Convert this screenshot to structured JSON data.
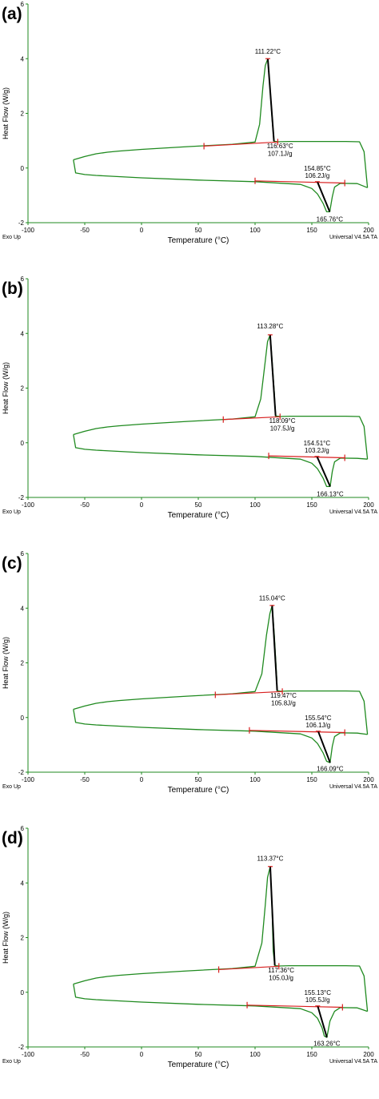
{
  "figure": {
    "colors": {
      "curve": "#1f8a1f",
      "axis": "#1f8a1f",
      "baseline": "#d81e1e",
      "tangent": "#000000",
      "text": "#000000"
    }
  },
  "chart_data": [
    {
      "type": "line",
      "panel_label": "(a)",
      "xlabel": "Temperature (°C)",
      "ylabel": "Heat Flow (W/g)",
      "xlim": [
        -100,
        200
      ],
      "ylim": [
        -2,
        6
      ],
      "xticks": [
        "-100",
        "-50",
        "0",
        "50",
        "100",
        "150",
        "200"
      ],
      "yticks": [
        "-2",
        "0",
        "2",
        "4",
        "6"
      ],
      "footer_left": "Exo Up",
      "footer_right": "Universal V4.5A TA",
      "cooling_curve": {
        "x": [
          -60,
          -50,
          -40,
          -30,
          -20,
          0,
          40,
          80,
          100,
          104,
          107,
          109,
          111.22,
          113,
          115,
          116.63,
          120,
          130,
          160,
          180,
          192,
          196,
          199
        ],
        "y": [
          0.3,
          0.42,
          0.52,
          0.58,
          0.62,
          0.68,
          0.78,
          0.87,
          0.95,
          1.6,
          3.0,
          3.75,
          4.0,
          3.0,
          1.8,
          0.98,
          0.96,
          0.97,
          0.97,
          0.97,
          0.96,
          0.6,
          -0.72
        ]
      },
      "heating_curve": {
        "x": [
          -60,
          -58,
          -50,
          -40,
          0,
          50,
          100,
          140,
          150,
          155,
          160,
          163,
          165.76,
          168,
          170,
          175,
          190,
          199
        ],
        "y": [
          0.3,
          -0.18,
          -0.24,
          -0.27,
          -0.36,
          -0.44,
          -0.5,
          -0.6,
          -0.75,
          -0.95,
          -1.3,
          -1.6,
          -1.6,
          -1.05,
          -0.7,
          -0.56,
          -0.57,
          -0.72
        ]
      },
      "annotations": [
        {
          "text": "111.22°C",
          "x": 111.22,
          "y": 4.18
        },
        {
          "text": "116.63°C",
          "x": 122,
          "y": 0.72
        },
        {
          "text": "107.1J/g",
          "x": 122,
          "y": 0.45
        },
        {
          "text": "154.85°C",
          "x": 154.85,
          "y": -0.1
        },
        {
          "text": "106.2J/g",
          "x": 154.85,
          "y": -0.36
        },
        {
          "text": "165.76°C",
          "x": 165.76,
          "y": -1.95
        }
      ],
      "baselines": [
        {
          "x": [
            55,
            120
          ],
          "y": [
            0.8,
            0.95
          ]
        },
        {
          "x": [
            100,
            179
          ],
          "y": [
            -0.47,
            -0.55
          ]
        }
      ],
      "tangents": [
        {
          "x": [
            111.22,
            116.63
          ],
          "y": [
            4.0,
            0.98
          ]
        },
        {
          "x": [
            154.85,
            165.76
          ],
          "y": [
            -0.5,
            -1.6
          ]
        }
      ]
    },
    {
      "type": "line",
      "panel_label": "(b)",
      "xlabel": "Temperature (°C)",
      "ylabel": "Heat Flow (W/g)",
      "xlim": [
        -100,
        200
      ],
      "ylim": [
        -2,
        6
      ],
      "xticks": [
        "-100",
        "-50",
        "0",
        "50",
        "100",
        "150",
        "200"
      ],
      "yticks": [
        "-2",
        "0",
        "2",
        "4",
        "6"
      ],
      "footer_left": "Exo Up",
      "footer_right": "Universal V4.5A TA",
      "cooling_curve": {
        "x": [
          -60,
          -50,
          -40,
          -30,
          -20,
          0,
          40,
          80,
          100,
          105,
          109,
          111,
          113.28,
          115,
          117,
          118.09,
          122,
          130,
          160,
          180,
          192,
          196,
          199
        ],
        "y": [
          0.3,
          0.42,
          0.52,
          0.58,
          0.62,
          0.68,
          0.78,
          0.87,
          0.95,
          1.6,
          3.0,
          3.7,
          3.95,
          3.0,
          1.8,
          0.98,
          0.96,
          0.97,
          0.97,
          0.97,
          0.96,
          0.6,
          -0.6
        ]
      },
      "heating_curve": {
        "x": [
          -60,
          -58,
          -50,
          -40,
          0,
          50,
          100,
          140,
          150,
          155,
          160,
          163,
          166.13,
          168,
          170,
          175,
          190,
          199
        ],
        "y": [
          0.3,
          -0.18,
          -0.24,
          -0.27,
          -0.36,
          -0.44,
          -0.5,
          -0.6,
          -0.75,
          -0.95,
          -1.3,
          -1.6,
          -1.6,
          -1.05,
          -0.7,
          -0.56,
          -0.57,
          -0.6
        ]
      },
      "annotations": [
        {
          "text": "113.28°C",
          "x": 113.28,
          "y": 4.18
        },
        {
          "text": "118.09°C",
          "x": 124,
          "y": 0.72
        },
        {
          "text": "107.5J/g",
          "x": 124,
          "y": 0.45
        },
        {
          "text": "154.51°C",
          "x": 154.51,
          "y": -0.1
        },
        {
          "text": "103.2J/g",
          "x": 154.51,
          "y": -0.36
        },
        {
          "text": "166.13°C",
          "x": 166.13,
          "y": -1.95
        }
      ],
      "baselines": [
        {
          "x": [
            72,
            122
          ],
          "y": [
            0.85,
            0.95
          ]
        },
        {
          "x": [
            112,
            179
          ],
          "y": [
            -0.48,
            -0.55
          ]
        }
      ],
      "tangents": [
        {
          "x": [
            113.28,
            118.09
          ],
          "y": [
            3.95,
            0.98
          ]
        },
        {
          "x": [
            154.51,
            166.13
          ],
          "y": [
            -0.5,
            -1.6
          ]
        }
      ]
    },
    {
      "type": "line",
      "panel_label": "(c)",
      "xlabel": "Temperature (°C)",
      "ylabel": "Heat Flow (W/g)",
      "xlim": [
        -100,
        200
      ],
      "ylim": [
        -2,
        6
      ],
      "xticks": [
        "-100",
        "-50",
        "0",
        "50",
        "100",
        "150",
        "200"
      ],
      "yticks": [
        "-2",
        "0",
        "2",
        "4",
        "6"
      ],
      "footer_left": "Exo Up",
      "footer_right": "Universal V4.5A TA",
      "cooling_curve": {
        "x": [
          -60,
          -50,
          -40,
          -30,
          -20,
          0,
          40,
          80,
          100,
          106,
          110,
          113,
          115.04,
          117,
          119,
          119.47,
          123,
          130,
          160,
          180,
          192,
          196,
          199
        ],
        "y": [
          0.3,
          0.42,
          0.52,
          0.58,
          0.62,
          0.68,
          0.78,
          0.87,
          0.95,
          1.6,
          3.0,
          3.8,
          4.1,
          3.0,
          1.5,
          0.98,
          0.96,
          0.97,
          0.97,
          0.97,
          0.96,
          0.6,
          -0.62
        ]
      },
      "heating_curve": {
        "x": [
          -60,
          -58,
          -50,
          -40,
          0,
          50,
          100,
          140,
          150,
          155,
          160,
          163,
          166.09,
          168,
          170,
          175,
          190,
          199
        ],
        "y": [
          0.3,
          -0.18,
          -0.24,
          -0.27,
          -0.36,
          -0.44,
          -0.5,
          -0.6,
          -0.75,
          -0.95,
          -1.3,
          -1.6,
          -1.65,
          -1.05,
          -0.7,
          -0.56,
          -0.57,
          -0.62
        ]
      },
      "annotations": [
        {
          "text": "115.04°C",
          "x": 115.04,
          "y": 4.28
        },
        {
          "text": "119.47°C",
          "x": 125,
          "y": 0.72
        },
        {
          "text": "105.8J/g",
          "x": 125,
          "y": 0.45
        },
        {
          "text": "155.54°C",
          "x": 155.54,
          "y": -0.1
        },
        {
          "text": "106.1J/g",
          "x": 155.54,
          "y": -0.36
        },
        {
          "text": "166.09°C",
          "x": 166.09,
          "y": -1.95
        }
      ],
      "baselines": [
        {
          "x": [
            65,
            124
          ],
          "y": [
            0.83,
            0.95
          ]
        },
        {
          "x": [
            95,
            179
          ],
          "y": [
            -0.47,
            -0.55
          ]
        }
      ],
      "tangents": [
        {
          "x": [
            115.04,
            119.47
          ],
          "y": [
            4.1,
            0.98
          ]
        },
        {
          "x": [
            155.54,
            166.09
          ],
          "y": [
            -0.5,
            -1.65
          ]
        }
      ]
    },
    {
      "type": "line",
      "panel_label": "(d)",
      "xlabel": "Temperature (°C)",
      "ylabel": "Heat Flow (W/g)",
      "xlim": [
        -100,
        200
      ],
      "ylim": [
        -2,
        6
      ],
      "xticks": [
        "-100",
        "-50",
        "0",
        "50",
        "100",
        "150",
        "200"
      ],
      "yticks": [
        "-2",
        "0",
        "2",
        "4",
        "6"
      ],
      "footer_left": "Exo Up",
      "footer_right": "Universal V4.5A TA",
      "cooling_curve": {
        "x": [
          -60,
          -50,
          -40,
          -30,
          -20,
          0,
          40,
          80,
          100,
          106,
          109,
          111,
          113.37,
          115,
          116,
          117.36,
          121,
          130,
          160,
          180,
          192,
          196,
          199
        ],
        "y": [
          0.3,
          0.42,
          0.52,
          0.58,
          0.62,
          0.68,
          0.78,
          0.87,
          0.95,
          1.8,
          3.2,
          4.2,
          4.6,
          3.0,
          1.5,
          0.98,
          0.96,
          0.97,
          0.97,
          0.97,
          0.96,
          0.6,
          -0.7
        ]
      },
      "heating_curve": {
        "x": [
          -60,
          -58,
          -50,
          -40,
          0,
          50,
          100,
          140,
          150,
          155,
          159,
          161,
          163.26,
          166,
          170,
          175,
          190,
          199
        ],
        "y": [
          0.3,
          -0.18,
          -0.24,
          -0.27,
          -0.36,
          -0.44,
          -0.5,
          -0.6,
          -0.75,
          -0.95,
          -1.3,
          -1.6,
          -1.65,
          -1.05,
          -0.7,
          -0.56,
          -0.57,
          -0.7
        ]
      },
      "annotations": [
        {
          "text": "113.37°C",
          "x": 113.37,
          "y": 4.82
        },
        {
          "text": "117.36°C",
          "x": 123,
          "y": 0.72
        },
        {
          "text": "105.0J/g",
          "x": 123,
          "y": 0.45
        },
        {
          "text": "155.13°C",
          "x": 155.13,
          "y": -0.1
        },
        {
          "text": "105.5J/g",
          "x": 155.13,
          "y": -0.36
        },
        {
          "text": "163.26°C",
          "x": 163.26,
          "y": -1.95
        }
      ],
      "baselines": [
        {
          "x": [
            68,
            121
          ],
          "y": [
            0.83,
            0.95
          ]
        },
        {
          "x": [
            93,
            177
          ],
          "y": [
            -0.47,
            -0.55
          ]
        }
      ],
      "tangents": [
        {
          "x": [
            113.37,
            117.36
          ],
          "y": [
            4.6,
            0.98
          ]
        },
        {
          "x": [
            155.13,
            163.26
          ],
          "y": [
            -0.5,
            -1.65
          ]
        }
      ]
    }
  ]
}
